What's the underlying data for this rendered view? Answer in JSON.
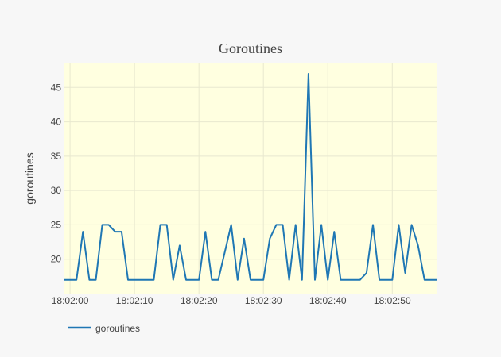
{
  "chart_data": {
    "type": "line",
    "title": "Goroutines",
    "xlabel": "",
    "ylabel": "goroutines",
    "ylim": [
      15,
      48.5
    ],
    "y_ticks": [
      20,
      25,
      30,
      35,
      40,
      45
    ],
    "x_tick_labels": [
      "18:02:00",
      "18:02:10",
      "18:02:20",
      "18:02:30",
      "18:02:40",
      "18:02:50"
    ],
    "x_tick_times": [
      "18:02:00",
      "18:02:10",
      "18:02:20",
      "18:02:30",
      "18:02:40",
      "18:02:50"
    ],
    "xlim": [
      "18:01:59",
      "18:02:57"
    ],
    "plot_background": "#ffffe0",
    "grid": true,
    "legend_position": "bottom-left",
    "series": [
      {
        "name": "goroutines",
        "color": "#1f77b4",
        "x": [
          "18:01:59",
          "18:02:00",
          "18:02:01",
          "18:02:02",
          "18:02:03",
          "18:02:04",
          "18:02:05",
          "18:02:06",
          "18:02:07",
          "18:02:08",
          "18:02:09",
          "18:02:10",
          "18:02:11",
          "18:02:12",
          "18:02:13",
          "18:02:14",
          "18:02:15",
          "18:02:16",
          "18:02:17",
          "18:02:18",
          "18:02:19",
          "18:02:20",
          "18:02:21",
          "18:02:22",
          "18:02:23",
          "18:02:24",
          "18:02:25",
          "18:02:26",
          "18:02:27",
          "18:02:28",
          "18:02:29",
          "18:02:30",
          "18:02:31",
          "18:02:32",
          "18:02:33",
          "18:02:34",
          "18:02:35",
          "18:02:36",
          "18:02:37",
          "18:02:38",
          "18:02:39",
          "18:02:40",
          "18:02:41",
          "18:02:42",
          "18:02:43",
          "18:02:44",
          "18:02:45",
          "18:02:46",
          "18:02:47",
          "18:02:48",
          "18:02:49",
          "18:02:50",
          "18:02:51",
          "18:02:52",
          "18:02:53",
          "18:02:54",
          "18:02:55",
          "18:02:56",
          "18:02:57"
        ],
        "values": [
          17,
          17,
          17,
          24,
          17,
          17,
          25,
          25,
          24,
          24,
          17,
          17,
          17,
          17,
          17,
          25,
          25,
          17,
          22,
          17,
          17,
          17,
          24,
          17,
          17,
          21,
          25,
          17,
          23,
          17,
          17,
          17,
          23,
          25,
          25,
          17,
          25,
          17,
          47,
          17,
          25,
          17,
          24,
          17,
          17,
          17,
          17,
          18,
          25,
          17,
          17,
          17,
          25,
          18,
          25,
          22,
          17,
          17,
          17
        ]
      }
    ]
  }
}
